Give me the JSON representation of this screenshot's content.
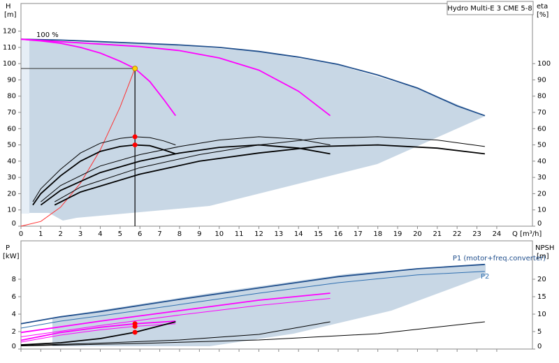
{
  "chart_data": [
    {
      "type": "line",
      "title": "Hydro Multi-E 3 CME 5-8",
      "annotation": "100 %",
      "ylabel": "H",
      "yunit": "[m]",
      "y2label": "eta",
      "y2unit": "[%]",
      "xlabel": "Q [m³/h]",
      "xlim": [
        0,
        25.8
      ],
      "ylim": [
        0,
        137
      ],
      "y2lim": [
        0,
        137
      ],
      "xticks": [
        0,
        1,
        2,
        3,
        4,
        5,
        6,
        7,
        8,
        9,
        10,
        11,
        12,
        13,
        14,
        15,
        16,
        17,
        18,
        19,
        20,
        21,
        22,
        23,
        24
      ],
      "yticks": [
        0,
        10,
        20,
        30,
        40,
        50,
        60,
        70,
        80,
        90,
        100,
        110,
        120
      ],
      "y2ticks": [
        0,
        10,
        20,
        30,
        40,
        50,
        60,
        70,
        80,
        90,
        100
      ],
      "duty_point": {
        "x": 5.75,
        "y": 97,
        "color": "#ffd400"
      },
      "series": [
        {
          "color": "#1f4e8c",
          "style": "thick",
          "x": [
            0,
            2,
            4,
            6,
            8,
            10,
            12,
            14,
            16,
            18,
            20,
            22,
            23.4
          ],
          "values": [
            115,
            114.5,
            113.5,
            112.5,
            111.5,
            110,
            107.5,
            104,
            99.5,
            93,
            85,
            74,
            68
          ]
        },
        {
          "color": "#ff00ff",
          "style": "thick",
          "x": [
            0,
            2,
            4,
            6,
            8,
            10,
            12,
            14,
            15.6
          ],
          "values": [
            115,
            113.5,
            112,
            110.5,
            108,
            103.5,
            96,
            83,
            68
          ]
        },
        {
          "color": "#ff00ff",
          "style": "thick",
          "x": [
            0,
            1,
            2,
            3,
            4,
            5,
            5.75,
            6.5,
            7.2,
            7.8
          ],
          "values": [
            115,
            114,
            112.5,
            110,
            106.5,
            101.5,
            97,
            89,
            78,
            68
          ]
        },
        {
          "color": "#ff3030",
          "style": "thin",
          "x": [
            0,
            1,
            2,
            3,
            4,
            5,
            5.75
          ],
          "values": [
            0,
            2.9,
            11.7,
            26.4,
            46.9,
            73.3,
            97
          ]
        },
        {
          "color": "#000000",
          "style": "thick",
          "axis": "y2",
          "x": [
            0.6,
            1,
            2,
            3,
            4,
            5,
            5.75,
            6.5,
            7.2,
            7.8
          ],
          "values": [
            13,
            20,
            31,
            40,
            46,
            49,
            50,
            49.5,
            47,
            44.5
          ]
        },
        {
          "color": "#000000",
          "style": "thin",
          "axis": "y2",
          "x": [
            0.6,
            1,
            2,
            3,
            4,
            5,
            5.75,
            6.5,
            7.2,
            7.8
          ],
          "values": [
            15,
            23,
            35,
            45,
            51,
            54,
            55,
            54.5,
            52.5,
            50
          ]
        },
        {
          "color": "#000000",
          "style": "thick",
          "axis": "y2",
          "x": [
            1,
            2,
            4,
            6,
            8,
            10,
            12,
            14,
            15.6
          ],
          "values": [
            13,
            22,
            33,
            40,
            45,
            48.5,
            50,
            48,
            44.5
          ]
        },
        {
          "color": "#000000",
          "style": "thin",
          "axis": "y2",
          "x": [
            1,
            2,
            4,
            6,
            8,
            10,
            12,
            14,
            15.6
          ],
          "values": [
            15,
            25,
            37,
            44,
            49,
            53,
            55,
            53.5,
            50
          ]
        },
        {
          "color": "#000000",
          "style": "thick",
          "axis": "y2",
          "x": [
            1.7,
            3,
            6,
            9,
            12,
            15,
            18,
            21,
            23.4
          ],
          "values": [
            13,
            21,
            32,
            40,
            45,
            49,
            50,
            48,
            44.5
          ]
        },
        {
          "color": "#000000",
          "style": "thin",
          "axis": "y2",
          "x": [
            1.7,
            3,
            6,
            9,
            12,
            15,
            18,
            21,
            23.4
          ],
          "values": [
            15,
            24,
            36,
            44,
            50,
            54,
            55,
            53,
            49
          ]
        },
        {
          "color": "#ff0000",
          "style": "points",
          "axis": "y2",
          "x": [
            5.75,
            5.75
          ],
          "values": [
            55,
            50
          ]
        }
      ]
    },
    {
      "type": "line",
      "ylabel": "P",
      "yunit": "[kW]",
      "y2label": "NPSH",
      "y2unit": "[m]",
      "xlim": [
        0,
        25.8
      ],
      "ylim": [
        0,
        12.4
      ],
      "y2lim": [
        0,
        31
      ],
      "xticks": [
        0,
        1,
        2,
        3,
        4,
        5,
        6,
        7,
        8,
        9,
        10,
        11,
        12,
        13,
        14,
        15,
        16,
        17,
        18,
        19,
        20,
        21,
        22,
        23,
        24
      ],
      "yticks": [
        0,
        2,
        4,
        6,
        8
      ],
      "y2ticks": [
        0,
        5,
        10,
        15,
        20
      ],
      "series": [
        {
          "name": "P1 (motor+freq.converter)",
          "color": "#1f4e8c",
          "style": "thick",
          "x": [
            0,
            2,
            4,
            8,
            12,
            16,
            20,
            23.4
          ],
          "values": [
            2.9,
            3.7,
            4.3,
            5.7,
            7.0,
            8.3,
            9.2,
            9.7
          ]
        },
        {
          "name": "P2",
          "color": "#2f6fb0",
          "style": "thin",
          "x": [
            0,
            2,
            4,
            8,
            12,
            16,
            20,
            23.4
          ],
          "values": [
            2.4,
            3.2,
            3.8,
            5.1,
            6.4,
            7.6,
            8.5,
            8.9
          ]
        },
        {
          "color": "#ff00ff",
          "style": "thick",
          "x": [
            0,
            4,
            8,
            12,
            15.6
          ],
          "values": [
            1.9,
            3.2,
            4.4,
            5.6,
            6.4
          ]
        },
        {
          "color": "#ff00ff",
          "style": "thin",
          "x": [
            0,
            4,
            8,
            12,
            15.6
          ],
          "values": [
            1.4,
            2.7,
            3.9,
            5.0,
            5.8
          ]
        },
        {
          "color": "#ff00ff",
          "style": "thick",
          "x": [
            0,
            2,
            4,
            5.75,
            7.8
          ],
          "values": [
            1.0,
            1.9,
            2.5,
            2.9,
            3.2
          ]
        },
        {
          "color": "#ff00ff",
          "style": "thin",
          "x": [
            0,
            2,
            4,
            5.75,
            7.8
          ],
          "values": [
            0.8,
            1.6,
            2.2,
            2.6,
            2.9
          ]
        },
        {
          "color": "#000000",
          "style": "thick",
          "axis": "y2",
          "x": [
            0,
            2,
            4,
            5.75,
            7.8
          ],
          "values": [
            1.2,
            1.8,
            3.0,
            4.8,
            7.8
          ]
        },
        {
          "color": "#000000",
          "style": "thin",
          "axis": "y2",
          "x": [
            0,
            4,
            8,
            12,
            15.6
          ],
          "values": [
            1.0,
            1.7,
            2.6,
            4.2,
            7.8
          ]
        },
        {
          "color": "#000000",
          "style": "thin",
          "axis": "y2",
          "x": [
            0,
            6,
            12,
            18,
            23.4
          ],
          "values": [
            0.9,
            1.6,
            2.6,
            4.4,
            7.8
          ]
        },
        {
          "color": "#ff0000",
          "style": "points",
          "x": [
            5.75,
            5.75
          ],
          "values": [
            2.9,
            2.6
          ]
        },
        {
          "color": "#ff0000",
          "style": "points",
          "axis": "y2",
          "x": [
            5.75
          ],
          "values": [
            4.8
          ]
        }
      ]
    }
  ]
}
